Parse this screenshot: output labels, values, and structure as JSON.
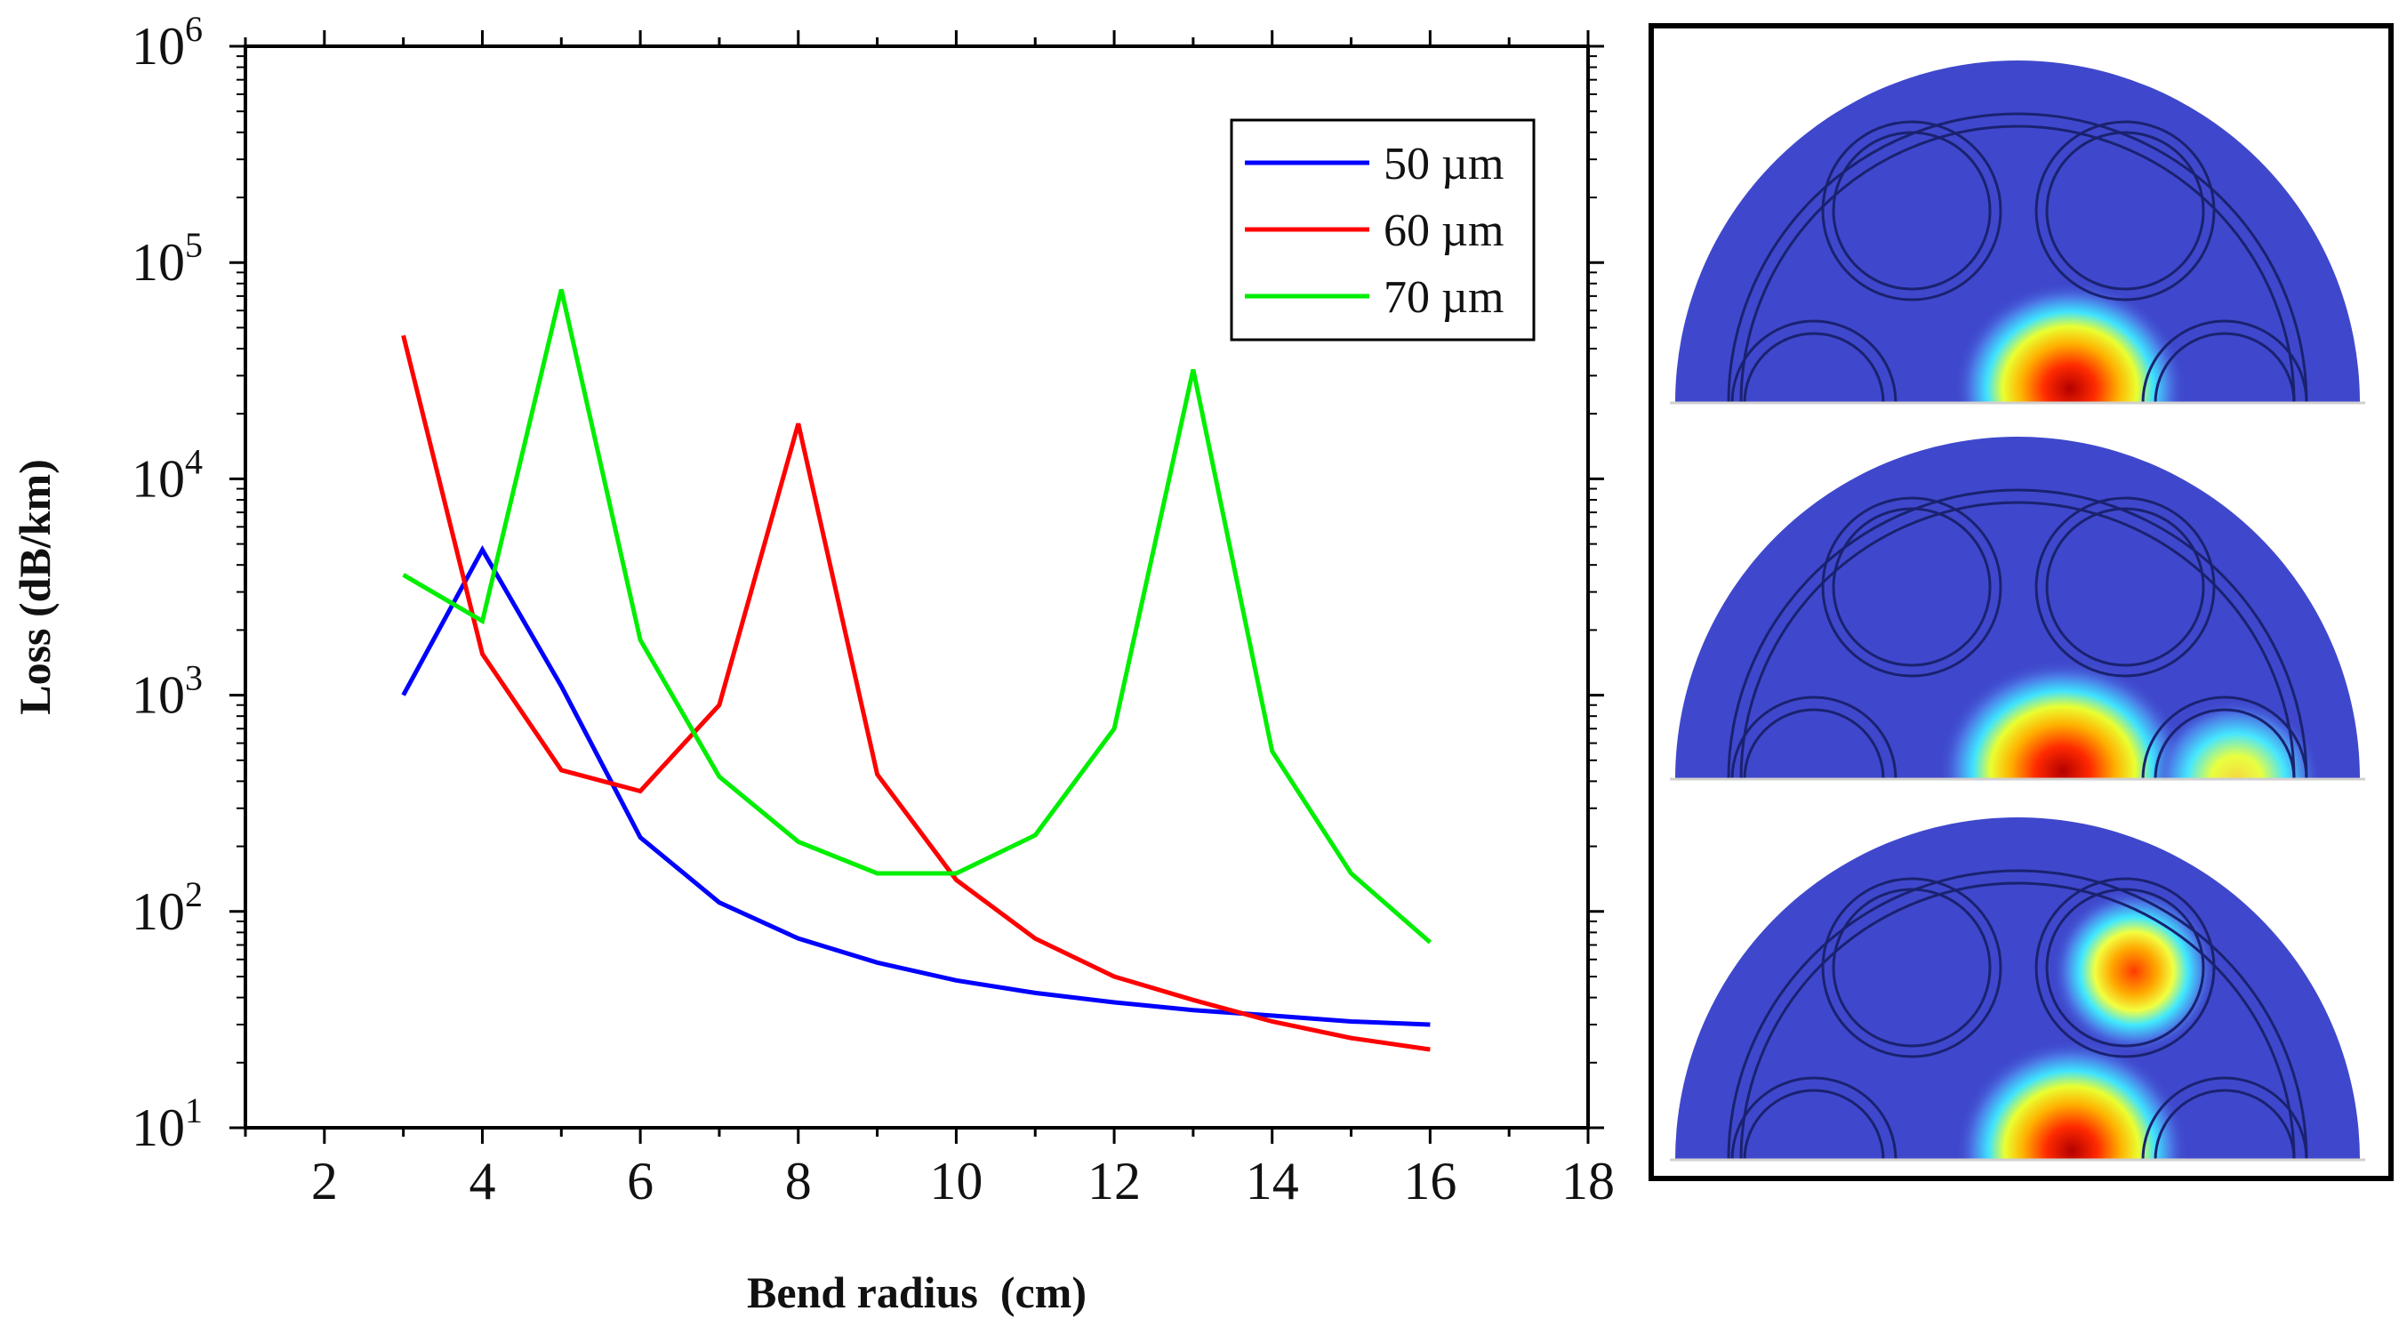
{
  "chart_data": {
    "type": "line",
    "xlabel": "Bend radius  (cm)",
    "ylabel": "Loss (dB/km)",
    "xlim": [
      1,
      18
    ],
    "ylim": [
      10,
      1000000
    ],
    "yscale": "log",
    "xticks": [
      2,
      4,
      6,
      8,
      10,
      12,
      14,
      16,
      18
    ],
    "xticklabels": [
      "2",
      "4",
      "6",
      "8",
      "10",
      "12",
      "14",
      "16",
      "18"
    ],
    "yticks": [
      {
        "base": "10",
        "exp": "1",
        "value": 10
      },
      {
        "base": "10",
        "exp": "2",
        "value": 100
      },
      {
        "base": "10",
        "exp": "3",
        "value": 1000
      },
      {
        "base": "10",
        "exp": "4",
        "value": 10000
      },
      {
        "base": "10",
        "exp": "5",
        "value": 100000
      },
      {
        "base": "10",
        "exp": "6",
        "value": 1000000
      }
    ],
    "legend_position": "top-right",
    "grid": false,
    "series": [
      {
        "name": "50 µm",
        "color": "#0000ff",
        "x": [
          3,
          4,
          5,
          6,
          7,
          8,
          9,
          10,
          11,
          12,
          13,
          14,
          15,
          16
        ],
        "y": [
          1000,
          4700,
          1100,
          220,
          110,
          75,
          58,
          48,
          42,
          38,
          35,
          33,
          31,
          30
        ]
      },
      {
        "name": "60 µm",
        "color": "#ff0000",
        "x": [
          3,
          4,
          5,
          6,
          7,
          8,
          9,
          10,
          11,
          12,
          13,
          14,
          15,
          16
        ],
        "y": [
          46000,
          1550,
          450,
          360,
          900,
          18000,
          430,
          140,
          75,
          50,
          39,
          31,
          26,
          23
        ]
      },
      {
        "name": "70 µm",
        "color": "#00ee00",
        "x": [
          3,
          4,
          5,
          6,
          7,
          8,
          9,
          10,
          11,
          12,
          13,
          14,
          15,
          16
        ],
        "y": [
          3600,
          2200,
          75000,
          1800,
          420,
          210,
          150,
          150,
          225,
          700,
          32000,
          550,
          150,
          72
        ]
      }
    ]
  },
  "mode_panels": {
    "count": 3,
    "colormap": "jet",
    "background_color": "#3f48cc"
  }
}
